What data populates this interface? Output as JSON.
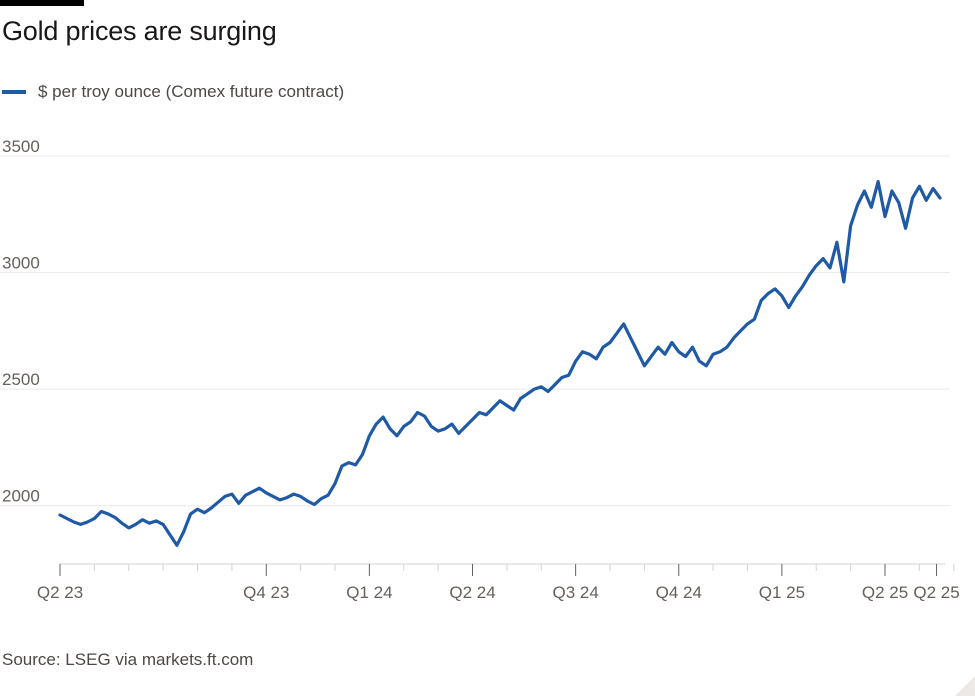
{
  "title": "Gold prices are surging",
  "legend": {
    "label": "$ per troy ounce (Comex future contract)",
    "color": "#1f5aa6"
  },
  "source": "Source: LSEG via markets.ft.com",
  "chart_data": {
    "type": "line",
    "title": "Gold prices are surging",
    "xlabel": "",
    "ylabel": "$ per troy ounce (Comex future contract)",
    "ylim": [
      1750,
      3500
    ],
    "yticks": [
      2000,
      2500,
      3000,
      3500
    ],
    "grid": true,
    "x_ticks": [
      {
        "label": "Q2 23",
        "t": 0
      },
      {
        "label": "Q4 23",
        "t": 6
      },
      {
        "label": "Q1 24",
        "t": 9
      },
      {
        "label": "Q2 24",
        "t": 12
      },
      {
        "label": "Q3 24",
        "t": 15
      },
      {
        "label": "Q4 24",
        "t": 18
      },
      {
        "label": "Q1 25",
        "t": 21
      },
      {
        "label": "Q2 25",
        "t": 24
      },
      {
        "label": "Q2 25",
        "t": 25.5
      }
    ],
    "minor_ticks": [
      1,
      2,
      3,
      4,
      5,
      7,
      8,
      10,
      11,
      13,
      14,
      16,
      17,
      19,
      20,
      22,
      23,
      25,
      26
    ],
    "series": [
      {
        "name": "$ per troy ounce (Comex future contract)",
        "color": "#1f5aa6",
        "t": [
          0,
          0.2,
          0.4,
          0.6,
          0.8,
          1.0,
          1.2,
          1.4,
          1.6,
          1.8,
          2.0,
          2.2,
          2.4,
          2.6,
          2.8,
          3.0,
          3.2,
          3.4,
          3.6,
          3.8,
          4.0,
          4.2,
          4.4,
          4.6,
          4.8,
          5.0,
          5.2,
          5.4,
          5.6,
          5.8,
          6.0,
          6.2,
          6.4,
          6.6,
          6.8,
          7.0,
          7.2,
          7.4,
          7.6,
          7.8,
          8.0,
          8.2,
          8.4,
          8.6,
          8.8,
          9.0,
          9.2,
          9.4,
          9.6,
          9.8,
          10.0,
          10.2,
          10.4,
          10.6,
          10.8,
          11.0,
          11.2,
          11.4,
          11.6,
          11.8,
          12.0,
          12.2,
          12.4,
          12.6,
          12.8,
          13.0,
          13.2,
          13.4,
          13.6,
          13.8,
          14.0,
          14.2,
          14.4,
          14.6,
          14.8,
          15.0,
          15.2,
          15.4,
          15.6,
          15.8,
          16.0,
          16.2,
          16.4,
          16.6,
          16.8,
          17.0,
          17.2,
          17.4,
          17.6,
          17.8,
          18.0,
          18.2,
          18.4,
          18.6,
          18.8,
          19.0,
          19.2,
          19.4,
          19.6,
          19.8,
          20.0,
          20.2,
          20.4,
          20.6,
          20.8,
          21.0,
          21.2,
          21.4,
          21.6,
          21.8,
          22.0,
          22.2,
          22.4,
          22.6,
          22.8,
          23.0,
          23.2,
          23.4,
          23.6,
          23.8,
          24.0,
          24.2,
          24.4,
          24.6,
          24.8,
          25.0,
          25.2,
          25.4,
          25.6
        ],
        "values": [
          1960,
          1945,
          1930,
          1920,
          1930,
          1945,
          1975,
          1965,
          1950,
          1925,
          1905,
          1920,
          1940,
          1925,
          1935,
          1920,
          1875,
          1830,
          1890,
          1965,
          1985,
          1970,
          1990,
          2015,
          2040,
          2050,
          2010,
          2045,
          2060,
          2075,
          2055,
          2040,
          2025,
          2035,
          2050,
          2040,
          2020,
          2005,
          2030,
          2045,
          2095,
          2170,
          2185,
          2175,
          2220,
          2300,
          2350,
          2380,
          2330,
          2300,
          2340,
          2360,
          2400,
          2385,
          2340,
          2320,
          2330,
          2350,
          2310,
          2340,
          2370,
          2400,
          2390,
          2420,
          2450,
          2430,
          2410,
          2460,
          2480,
          2500,
          2510,
          2490,
          2520,
          2550,
          2560,
          2620,
          2660,
          2650,
          2630,
          2680,
          2700,
          2740,
          2780,
          2720,
          2660,
          2600,
          2640,
          2680,
          2650,
          2700,
          2660,
          2640,
          2680,
          2620,
          2600,
          2650,
          2660,
          2680,
          2720,
          2750,
          2780,
          2800,
          2880,
          2910,
          2930,
          2900,
          2850,
          2900,
          2940,
          2990,
          3030,
          3060,
          3020,
          3130,
          2960,
          3200,
          3290,
          3350,
          3280,
          3390,
          3240,
          3350,
          3300,
          3190,
          3320,
          3370,
          3310,
          3360,
          3320
        ]
      }
    ]
  }
}
